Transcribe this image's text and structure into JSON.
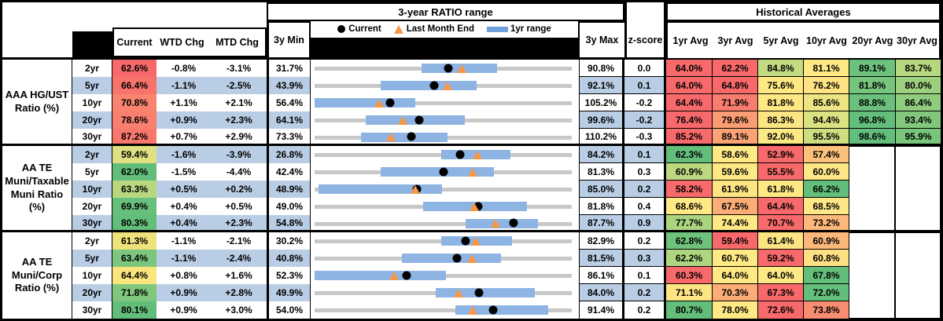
{
  "headers": {
    "ratio_range_title": "3-year RATIO range",
    "historical_title": "Historical Averages",
    "current": "Current",
    "wtd": "WTD Chg",
    "mtd": "MTD Chg",
    "min": "3y Min",
    "max": "3y Max",
    "zscore": "z-score",
    "avgs": [
      "1yr Avg",
      "3yr Avg",
      "5yr Avg",
      "10yr Avg",
      "20yr Avg",
      "30yr Avg"
    ],
    "legend": {
      "current": "Current",
      "last_month": "Last Month End",
      "range": "1yr range"
    }
  },
  "colors": {
    "row_alt_blue": "#B9CDE4",
    "bar_1yr_range": "#8EB4E3",
    "bar_3yr_track": "#C8C8C8",
    "marker_current": "#000000",
    "marker_last_month": "#F79646",
    "legend_bar": "#6FA0D9"
  },
  "chart_data": {
    "type": "table",
    "note": "Each row shows a horizontal range chart scaled from 3y Min to 3y Max; blue bar = 1yr range, black dot = Current, orange triangle = Last Month End.",
    "groups": [
      {
        "label": "AAA HG/UST\nRatio (%)",
        "rows": [
          {
            "tenor": "2yr",
            "current": "62.6%",
            "current_color": "#F8696B",
            "wtd": "-0.8%",
            "mtd": "-3.1%",
            "min": "31.7%",
            "max": "90.8%",
            "zscore": "0.0",
            "min_v": 31.7,
            "max_v": 90.8,
            "cur_v": 62.6,
            "lme_v": 65.7,
            "range1y": [
              56.4,
              73.8
            ],
            "avgs": [
              "64.0%",
              "62.2%",
              "84.8%",
              "81.1%",
              "89.1%",
              "83.7%"
            ],
            "avg_colors": [
              "#F8696B",
              "#F8696B",
              "#C3DB81",
              "#FFE984",
              "#6CC17C",
              "#B6D77F"
            ]
          },
          {
            "tenor": "5yr",
            "current": "66.4%",
            "current_color": "#F8736C",
            "wtd": "-1.1%",
            "mtd": "-2.5%",
            "min": "43.9%",
            "max": "92.1%",
            "zscore": "0.1",
            "min_v": 43.9,
            "max_v": 92.1,
            "cur_v": 66.4,
            "lme_v": 68.9,
            "range1y": [
              56.3,
              74.4
            ],
            "avgs": [
              "64.0%",
              "64.8%",
              "75.6%",
              "76.2%",
              "81.8%",
              "80.0%"
            ],
            "avg_colors": [
              "#F8696B",
              "#F8696B",
              "#FEE883",
              "#FEE283",
              "#77C57D",
              "#9CD07E"
            ]
          },
          {
            "tenor": "10yr",
            "current": "70.8%",
            "current_color": "#F9846F",
            "wtd": "+1.1%",
            "mtd": "+2.1%",
            "min": "56.4%",
            "max": "105.2%",
            "zscore": "-0.2",
            "min_v": 56.4,
            "max_v": 105.2,
            "cur_v": 70.8,
            "lme_v": 68.7,
            "range1y": [
              56.4,
              75.5
            ],
            "avgs": [
              "64.4%",
              "71.9%",
              "81.8%",
              "85.6%",
              "88.8%",
              "86.4%"
            ],
            "avg_colors": [
              "#F8696B",
              "#F87D6E",
              "#FEE883",
              "#EDE583",
              "#6AC07C",
              "#8FCC7E"
            ]
          },
          {
            "tenor": "20yr",
            "current": "78.6%",
            "current_color": "#F97F6E",
            "wtd": "+0.9%",
            "mtd": "+2.3%",
            "min": "64.1%",
            "max": "99.6%",
            "zscore": "-0.2",
            "min_v": 64.1,
            "max_v": 99.6,
            "cur_v": 78.6,
            "lme_v": 76.3,
            "range1y": [
              71.2,
              84.9
            ],
            "avgs": [
              "76.4%",
              "79.6%",
              "86.3%",
              "94.4%",
              "96.8%",
              "93.4%"
            ],
            "avg_colors": [
              "#F8696B",
              "#FB9D74",
              "#FEE583",
              "#DCE282",
              "#64BE7B",
              "#82C77D"
            ]
          },
          {
            "tenor": "30yr",
            "current": "87.2%",
            "current_color": "#F8786D",
            "wtd": "+0.7%",
            "mtd": "+2.9%",
            "min": "73.3%",
            "max": "110.2%",
            "zscore": "-0.3",
            "min_v": 73.3,
            "max_v": 110.2,
            "cur_v": 87.2,
            "lme_v": 84.3,
            "range1y": [
              80.0,
              92.4
            ],
            "avgs": [
              "85.2%",
              "89.1%",
              "92.0%",
              "95.5%",
              "98.6%",
              "95.9%"
            ],
            "avg_colors": [
              "#F8696B",
              "#FBA376",
              "#FBE983",
              "#CDDE81",
              "#63BE7B",
              "#79C57C"
            ]
          }
        ]
      },
      {
        "label": "AA TE\nMuni/Taxable\nMuni Ratio\n(%)",
        "rows": [
          {
            "tenor": "2yr",
            "current": "59.4%",
            "current_color": "#DEE082",
            "wtd": "-1.6%",
            "mtd": "-3.9%",
            "min": "26.8%",
            "max": "84.2%",
            "zscore": "0.1",
            "min_v": 26.8,
            "max_v": 84.2,
            "cur_v": 59.4,
            "lme_v": 63.3,
            "range1y": [
              55.2,
              70.6
            ],
            "avgs": [
              "62.3%",
              "58.6%",
              "52.9%",
              "57.4%"
            ],
            "avg_colors": [
              "#63BE7B",
              "#FFE984",
              "#F8696B",
              "#FCC17C"
            ]
          },
          {
            "tenor": "5yr",
            "current": "62.0%",
            "current_color": "#63BE7B",
            "wtd": "-1.5%",
            "mtd": "-4.4%",
            "min": "42.4%",
            "max": "81.3%",
            "zscore": "0.3",
            "min_v": 42.4,
            "max_v": 81.3,
            "cur_v": 62.0,
            "lme_v": 66.4,
            "range1y": [
              52.4,
              69.6
            ],
            "avgs": [
              "60.9%",
              "59.6%",
              "55.5%",
              "60.0%"
            ],
            "avg_colors": [
              "#BCD980",
              "#FFE984",
              "#F8696B",
              "#FEE787"
            ]
          },
          {
            "tenor": "10yr",
            "current": "63.3%",
            "current_color": "#B8D880",
            "wtd": "+0.5%",
            "mtd": "+0.2%",
            "min": "48.9%",
            "max": "85.0%",
            "zscore": "0.2",
            "min_v": 48.9,
            "max_v": 85.0,
            "cur_v": 63.3,
            "lme_v": 63.1,
            "range1y": [
              49.4,
              66.9
            ],
            "avgs": [
              "58.2%",
              "61.9%",
              "61.8%",
              "66.2%"
            ],
            "avg_colors": [
              "#F8696B",
              "#FDE583",
              "#FEE884",
              "#63BE7B"
            ]
          },
          {
            "tenor": "20yr",
            "current": "69.9%",
            "current_color": "#66BF7B",
            "wtd": "+0.4%",
            "mtd": "+0.5%",
            "min": "49.0%",
            "max": "81.8%",
            "zscore": "0.4",
            "min_v": 49.0,
            "max_v": 81.8,
            "cur_v": 69.9,
            "lme_v": 69.4,
            "range1y": [
              62.9,
              76.2
            ],
            "avgs": [
              "68.6%",
              "67.5%",
              "64.4%",
              "68.5%"
            ],
            "avg_colors": [
              "#FFE984",
              "#FBAD78",
              "#F8696B",
              "#FEE787"
            ]
          },
          {
            "tenor": "30yr",
            "current": "80.3%",
            "current_color": "#63BE7B",
            "wtd": "+0.4%",
            "mtd": "+2.3%",
            "min": "54.8%",
            "max": "87.7%",
            "zscore": "0.9",
            "min_v": 54.8,
            "max_v": 87.7,
            "cur_v": 80.3,
            "lme_v": 78.0,
            "range1y": [
              74.2,
              83.5
            ],
            "avgs": [
              "77.7%",
              "74.4%",
              "70.7%",
              "73.2%"
            ],
            "avg_colors": [
              "#ABD47F",
              "#FFE984",
              "#F8696B",
              "#FCB97B"
            ]
          }
        ]
      },
      {
        "label": "AA TE\nMuni/Corp\nRatio (%)",
        "rows": [
          {
            "tenor": "2yr",
            "current": "61.3%",
            "current_color": "#EFE27D",
            "wtd": "-1.1%",
            "mtd": "-2.1%",
            "min": "30.2%",
            "max": "82.9%",
            "zscore": "0.2",
            "min_v": 30.2,
            "max_v": 82.9,
            "cur_v": 61.3,
            "lme_v": 63.4,
            "range1y": [
              56.2,
              70.8
            ],
            "avgs": [
              "62.8%",
              "59.4%",
              "61.4%",
              "60.9%"
            ],
            "avg_colors": [
              "#6FC27C",
              "#F8696B",
              "#FDE483",
              "#FCB77A"
            ]
          },
          {
            "tenor": "5yr",
            "current": "63.4%",
            "current_color": "#7CC67D",
            "wtd": "-1.1%",
            "mtd": "-2.4%",
            "min": "40.8%",
            "max": "81.5%",
            "zscore": "0.3",
            "min_v": 40.8,
            "max_v": 81.5,
            "cur_v": 63.4,
            "lme_v": 65.8,
            "range1y": [
              54.7,
              70.4
            ],
            "avgs": [
              "62.2%",
              "60.7%",
              "59.2%",
              "60.8%"
            ],
            "avg_colors": [
              "#AED57F",
              "#FFE984",
              "#F8696B",
              "#FEDF84"
            ]
          },
          {
            "tenor": "10yr",
            "current": "64.4%",
            "current_color": "#FBE57D",
            "wtd": "+0.8%",
            "mtd": "+1.6%",
            "min": "52.3%",
            "max": "86.1%",
            "zscore": "0.1",
            "min_v": 52.3,
            "max_v": 86.1,
            "cur_v": 64.4,
            "lme_v": 62.8,
            "range1y": [
              52.3,
              69.6
            ],
            "avgs": [
              "60.3%",
              "64.0%",
              "64.0%",
              "67.8%"
            ],
            "avg_colors": [
              "#F8696B",
              "#FFE984",
              "#FEE884",
              "#63BE7B"
            ]
          },
          {
            "tenor": "20yr",
            "current": "71.8%",
            "current_color": "#7FC77D",
            "wtd": "+0.9%",
            "mtd": "+2.8%",
            "min": "49.9%",
            "max": "84.0%",
            "zscore": "0.2",
            "min_v": 49.9,
            "max_v": 84.0,
            "cur_v": 71.8,
            "lme_v": 69.0,
            "range1y": [
              66.0,
              79.2
            ],
            "avgs": [
              "71.1%",
              "70.3%",
              "67.3%",
              "72.0%"
            ],
            "avg_colors": [
              "#FEE583",
              "#FBAC77",
              "#F8696B",
              "#63BE7B"
            ]
          },
          {
            "tenor": "30yr",
            "current": "80.1%",
            "current_color": "#63BE7B",
            "wtd": "+0.9%",
            "mtd": "+3.0%",
            "min": "54.0%",
            "max": "91.4%",
            "zscore": "0.2",
            "min_v": 54.0,
            "max_v": 91.4,
            "cur_v": 80.1,
            "lme_v": 77.1,
            "range1y": [
              74.6,
              88.1
            ],
            "avgs": [
              "80.7%",
              "78.0%",
              "72.6%",
              "73.8%"
            ],
            "avg_colors": [
              "#63BE7B",
              "#FEE984",
              "#F8696B",
              "#F98D72"
            ]
          }
        ]
      }
    ]
  }
}
